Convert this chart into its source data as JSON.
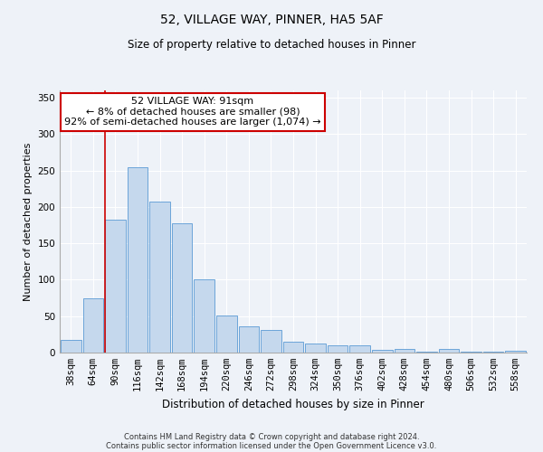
{
  "title": "52, VILLAGE WAY, PINNER, HA5 5AF",
  "subtitle": "Size of property relative to detached houses in Pinner",
  "xlabel": "Distribution of detached houses by size in Pinner",
  "ylabel": "Number of detached properties",
  "bar_color": "#c5d8ed",
  "bar_edge_color": "#5b9bd5",
  "background_color": "#eef2f8",
  "grid_color": "#ffffff",
  "categories": [
    "38sqm",
    "64sqm",
    "90sqm",
    "116sqm",
    "142sqm",
    "168sqm",
    "194sqm",
    "220sqm",
    "246sqm",
    "272sqm",
    "298sqm",
    "324sqm",
    "350sqm",
    "376sqm",
    "402sqm",
    "428sqm",
    "454sqm",
    "480sqm",
    "506sqm",
    "532sqm",
    "558sqm"
  ],
  "values": [
    18,
    75,
    183,
    255,
    207,
    178,
    100,
    51,
    36,
    31,
    15,
    13,
    10,
    10,
    4,
    5,
    1,
    5,
    1,
    1,
    2
  ],
  "ylim": [
    0,
    360
  ],
  "yticks": [
    0,
    50,
    100,
    150,
    200,
    250,
    300,
    350
  ],
  "property_line_index": 2,
  "annotation_text": "52 VILLAGE WAY: 91sqm\n← 8% of detached houses are smaller (98)\n92% of semi-detached houses are larger (1,074) →",
  "annotation_box_color": "#ffffff",
  "annotation_box_edge": "#cc0000",
  "title_fontsize": 10,
  "subtitle_fontsize": 8.5,
  "ylabel_fontsize": 8,
  "xlabel_fontsize": 8.5,
  "tick_fontsize": 7.5,
  "annotation_fontsize": 8,
  "footer_line1": "Contains HM Land Registry data © Crown copyright and database right 2024.",
  "footer_line2": "Contains public sector information licensed under the Open Government Licence v3.0.",
  "footer_fontsize": 6
}
